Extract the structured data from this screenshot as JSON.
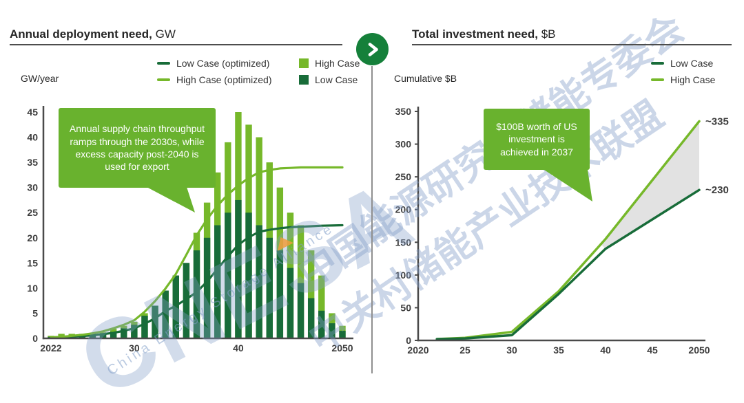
{
  "theme": {
    "light_green": "#76b82a",
    "dark_green": "#186c39",
    "callout_green": "#69b22e",
    "band_gray": "#e2e2e2",
    "axis_gray": "#4a4a4a",
    "circle_green": "#15803a",
    "watermark_blue": "rgba(130,158,200,0.42)",
    "accent_orange": "#f09e3c"
  },
  "watermark": {
    "row_a": "中国能源研究会储能专委会",
    "row_b": "中关村储能产业技术联盟",
    "logo": "CNESA",
    "logo_sub": "China Energy Storage Alliance"
  },
  "nav": {
    "chevron_icon": "next"
  },
  "chart_data": [
    {
      "id": "annual-deployment",
      "type": "bar",
      "title_bold": "Annual deployment need,",
      "title_unit": "GW",
      "y_axis_label": "GW/year",
      "ylim": [
        0,
        45
      ],
      "y_ticks": [
        0,
        5,
        10,
        15,
        20,
        25,
        30,
        35,
        40,
        45
      ],
      "x_tick_labels": [
        {
          "year": 2022,
          "label": "2022"
        },
        {
          "year": 2030,
          "label": "30"
        },
        {
          "year": 2040,
          "label": "40"
        },
        {
          "year": 2050,
          "label": "2050"
        }
      ],
      "years": [
        2022,
        2023,
        2024,
        2025,
        2026,
        2027,
        2028,
        2029,
        2030,
        2031,
        2032,
        2033,
        2034,
        2035,
        2036,
        2037,
        2038,
        2039,
        2040,
        2041,
        2042,
        2043,
        2044,
        2045,
        2046,
        2047,
        2048,
        2049,
        2050
      ],
      "series": [
        {
          "name": "High Case",
          "type": "bar",
          "color": "#76b82a",
          "values": [
            0.5,
            0.9,
            0.9,
            0.9,
            1.0,
            1.2,
            1.9,
            2.5,
            3.3,
            5.0,
            6.5,
            9.5,
            12.5,
            15.0,
            21.0,
            27.0,
            33.0,
            39.0,
            45.0,
            42.5,
            40.0,
            35.0,
            30.0,
            25.0,
            22.5,
            17.5,
            12.5,
            5.0,
            2.5
          ]
        },
        {
          "name": "Low Case",
          "type": "bar",
          "color": "#186c39",
          "values": [
            0.3,
            0.4,
            0.4,
            0.5,
            0.6,
            0.9,
            1.3,
            2.0,
            2.7,
            4.5,
            6.5,
            9.5,
            12.5,
            15.0,
            17.5,
            20.0,
            22.5,
            25.0,
            27.5,
            25.0,
            22.5,
            20.0,
            17.5,
            14.0,
            11.0,
            8.0,
            5.5,
            3.0,
            1.5
          ]
        },
        {
          "name": "High Case (optimized)",
          "type": "line",
          "color": "#76b82a",
          "values": [
            0.2,
            0.3,
            0.5,
            0.7,
            1.0,
            1.4,
            2.0,
            2.7,
            3.6,
            5.3,
            7.4,
            9.9,
            12.8,
            16.6,
            20.5,
            23.7,
            26.4,
            28.6,
            30.4,
            31.9,
            33.0,
            33.5,
            33.8,
            33.9,
            34.0,
            34.0,
            34.0,
            34.0,
            34.0
          ]
        },
        {
          "name": "Low Case (optimized)",
          "type": "line",
          "color": "#186c39",
          "values": [
            0.1,
            0.2,
            0.3,
            0.45,
            0.6,
            0.85,
            1.1,
            1.5,
            2.0,
            2.9,
            4.0,
            5.4,
            6.5,
            7.8,
            9.2,
            11.3,
            13.8,
            16.3,
            18.6,
            20.1,
            21.2,
            21.6,
            21.9,
            22.1,
            22.2,
            22.3,
            22.4,
            22.45,
            22.5
          ]
        }
      ],
      "legend": [
        {
          "label": "Low Case (optimized)",
          "marker": "dash",
          "color": "#186c39"
        },
        {
          "label": "High Case",
          "marker": "square",
          "color": "#76b82a"
        },
        {
          "label": "High Case (optimized)",
          "marker": "dash",
          "color": "#76b82a"
        },
        {
          "label": "Low Case",
          "marker": "square",
          "color": "#186c39"
        }
      ],
      "callout": "Annual supply chain throughput ramps through the 2030s, while excess capacity post-2040 is used for export",
      "grid": false,
      "legend_position": "top"
    },
    {
      "id": "total-investment",
      "type": "line",
      "title_bold": "Total investment need,",
      "title_unit": "$B",
      "y_axis_label": "Cumulative $B",
      "ylim": [
        0,
        350
      ],
      "y_ticks": [
        0,
        50,
        100,
        150,
        200,
        250,
        300,
        350
      ],
      "x_tick_labels": [
        {
          "year": 2020,
          "label": "2020"
        },
        {
          "year": 2025,
          "label": "25"
        },
        {
          "year": 2030,
          "label": "30"
        },
        {
          "year": 2035,
          "label": "35"
        },
        {
          "year": 2040,
          "label": "40"
        },
        {
          "year": 2045,
          "label": "45"
        },
        {
          "year": 2050,
          "label": "2050"
        }
      ],
      "series": [
        {
          "name": "High Case",
          "color": "#76b82a",
          "points": [
            [
              2022,
              2
            ],
            [
              2025,
              4
            ],
            [
              2030,
              13
            ],
            [
              2035,
              75
            ],
            [
              2040,
              155
            ],
            [
              2045,
              245
            ],
            [
              2050,
              335
            ]
          ]
        },
        {
          "name": "Low Case",
          "color": "#186c39",
          "points": [
            [
              2022,
              2
            ],
            [
              2025,
              3
            ],
            [
              2030,
              8
            ],
            [
              2035,
              71
            ],
            [
              2040,
              140
            ],
            [
              2045,
              185
            ],
            [
              2050,
              230
            ]
          ]
        }
      ],
      "band": {
        "color": "#e2e2e2",
        "polygon": [
          [
            2039.5,
            147
          ],
          [
            2040,
            155
          ],
          [
            2045,
            245
          ],
          [
            2050,
            335
          ],
          [
            2050,
            230
          ],
          [
            2045,
            185
          ],
          [
            2040,
            140
          ]
        ]
      },
      "end_labels": [
        {
          "text": "~335",
          "value": 335
        },
        {
          "text": "~230",
          "value": 230
        }
      ],
      "legend": [
        {
          "label": "Low Case",
          "marker": "dash",
          "color": "#186c39"
        },
        {
          "label": "High Case",
          "marker": "dash",
          "color": "#76b82a"
        }
      ],
      "callout": "$100B worth of US investment is achieved in 2037",
      "grid": false,
      "legend_position": "top-right"
    }
  ]
}
